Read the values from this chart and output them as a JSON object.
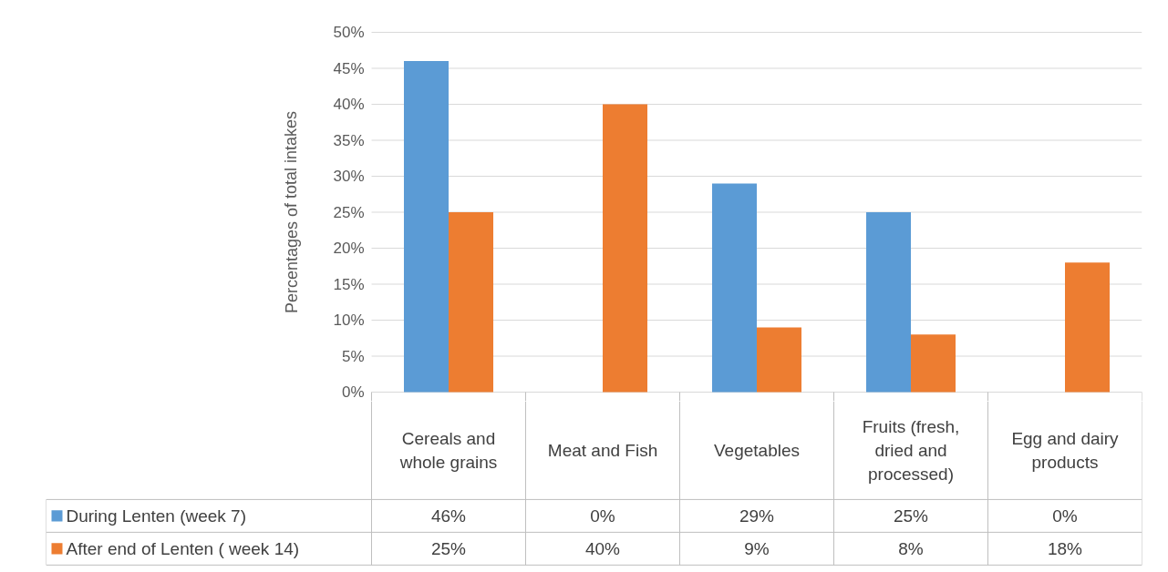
{
  "chart_data": {
    "type": "bar",
    "ylabel": "Percentages of total intakes",
    "categories": [
      "Cereals and whole grains",
      "Meat and Fish",
      "Vegetables",
      "Fruits (fresh, dried and processed)",
      "Egg and dairy products"
    ],
    "series": [
      {
        "name": "During Lenten (week 7)",
        "color": "#5b9bd5",
        "values": [
          46,
          0,
          29,
          25,
          0
        ],
        "value_labels": [
          "46%",
          "0%",
          "29%",
          "25%",
          "0%"
        ]
      },
      {
        "name": "After end of Lenten ( week 14)",
        "color": "#ed7d31",
        "values": [
          25,
          40,
          9,
          8,
          18
        ],
        "value_labels": [
          "25%",
          "40%",
          "9%",
          "8%",
          "18%"
        ]
      }
    ],
    "ylim": [
      0,
      50
    ],
    "yticks": [
      {
        "value": 0,
        "label": "0%"
      },
      {
        "value": 5,
        "label": "5%"
      },
      {
        "value": 10,
        "label": "10%"
      },
      {
        "value": 15,
        "label": "15%"
      },
      {
        "value": 20,
        "label": "20%"
      },
      {
        "value": 25,
        "label": "25%"
      },
      {
        "value": 30,
        "label": "30%"
      },
      {
        "value": 35,
        "label": "35%"
      },
      {
        "value": 40,
        "label": "40%"
      },
      {
        "value": 45,
        "label": "45%"
      },
      {
        "value": 50,
        "label": "50%"
      }
    ],
    "grid": "y",
    "legend": "bottom"
  }
}
